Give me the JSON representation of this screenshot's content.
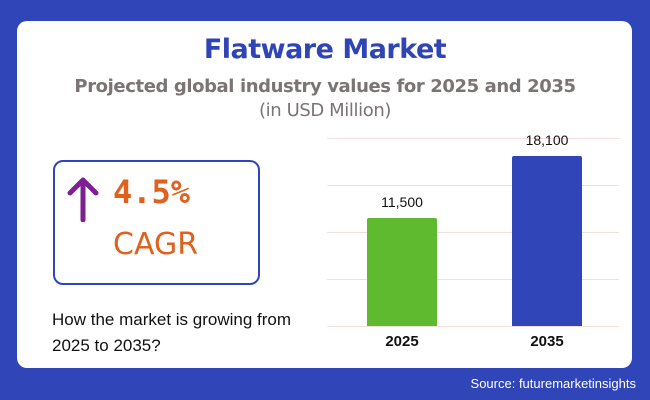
{
  "header": {
    "title": "Flatware Market",
    "subtitle": "Projected global industry values for 2025 and 2035",
    "unit": "(in USD Million)"
  },
  "cagr": {
    "value": "4.5%",
    "label": "CAGR",
    "icon": "arrow-up-icon",
    "arrow_color": "#7d2192",
    "text_color": "#e0601d"
  },
  "question": "How the market is growing from 2025 to 2035?",
  "source": "Source: futuremarketinsights",
  "colors": {
    "background": "#3045b8",
    "title": "#2f44b6",
    "bar_2025": "#5fba2f",
    "bar_2035": "#3045b8"
  },
  "chart_data": {
    "type": "bar",
    "title": "Flatware Market",
    "subtitle": "Projected global industry values for 2025 and 2035 (in USD Million)",
    "categories": [
      "2025",
      "2035"
    ],
    "values": [
      11500,
      18100
    ],
    "value_labels": [
      "11,500",
      "18,100"
    ],
    "bar_colors": [
      "#5fba2f",
      "#3045b8"
    ],
    "xlabel": "",
    "ylabel": "USD Million",
    "ylim": [
      0,
      20000
    ],
    "grid": true,
    "legend": "none"
  }
}
